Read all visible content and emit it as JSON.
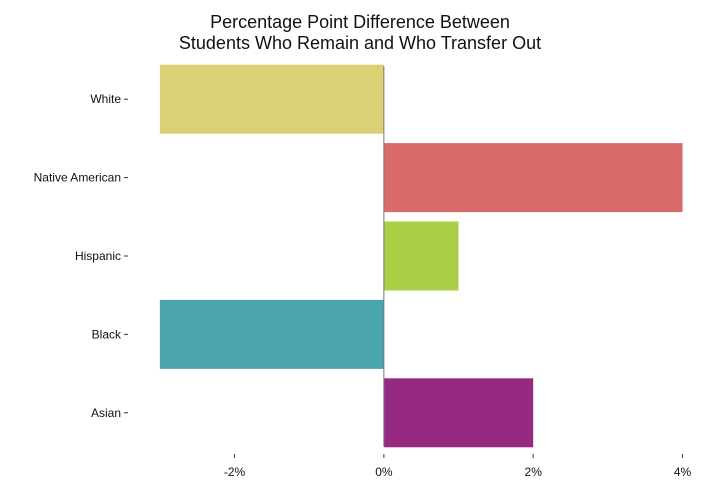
{
  "chart_data": {
    "type": "bar",
    "orientation": "horizontal",
    "title": "Percentage Point Difference Between\nStudents Who Remain and Who Transfer Out",
    "title_lines": [
      "Percentage Point Difference Between",
      "Students Who Remain and Who Transfer Out"
    ],
    "categories": [
      "White",
      "Native American",
      "Hispanic",
      "Black",
      "Asian"
    ],
    "values": [
      -3,
      4,
      1,
      -3,
      2
    ],
    "colors": [
      "#DBD073",
      "#D96B6B",
      "#A9CF47",
      "#4BA5AE",
      "#962A82"
    ],
    "xlabel": "",
    "ylabel": "",
    "xlim": [
      -3.4,
      4.1
    ],
    "xticks": [
      -2,
      0,
      2,
      4
    ],
    "xtick_labels": [
      "-2%",
      "0%",
      "2%",
      "4%"
    ],
    "grid": false,
    "legend": "none"
  }
}
